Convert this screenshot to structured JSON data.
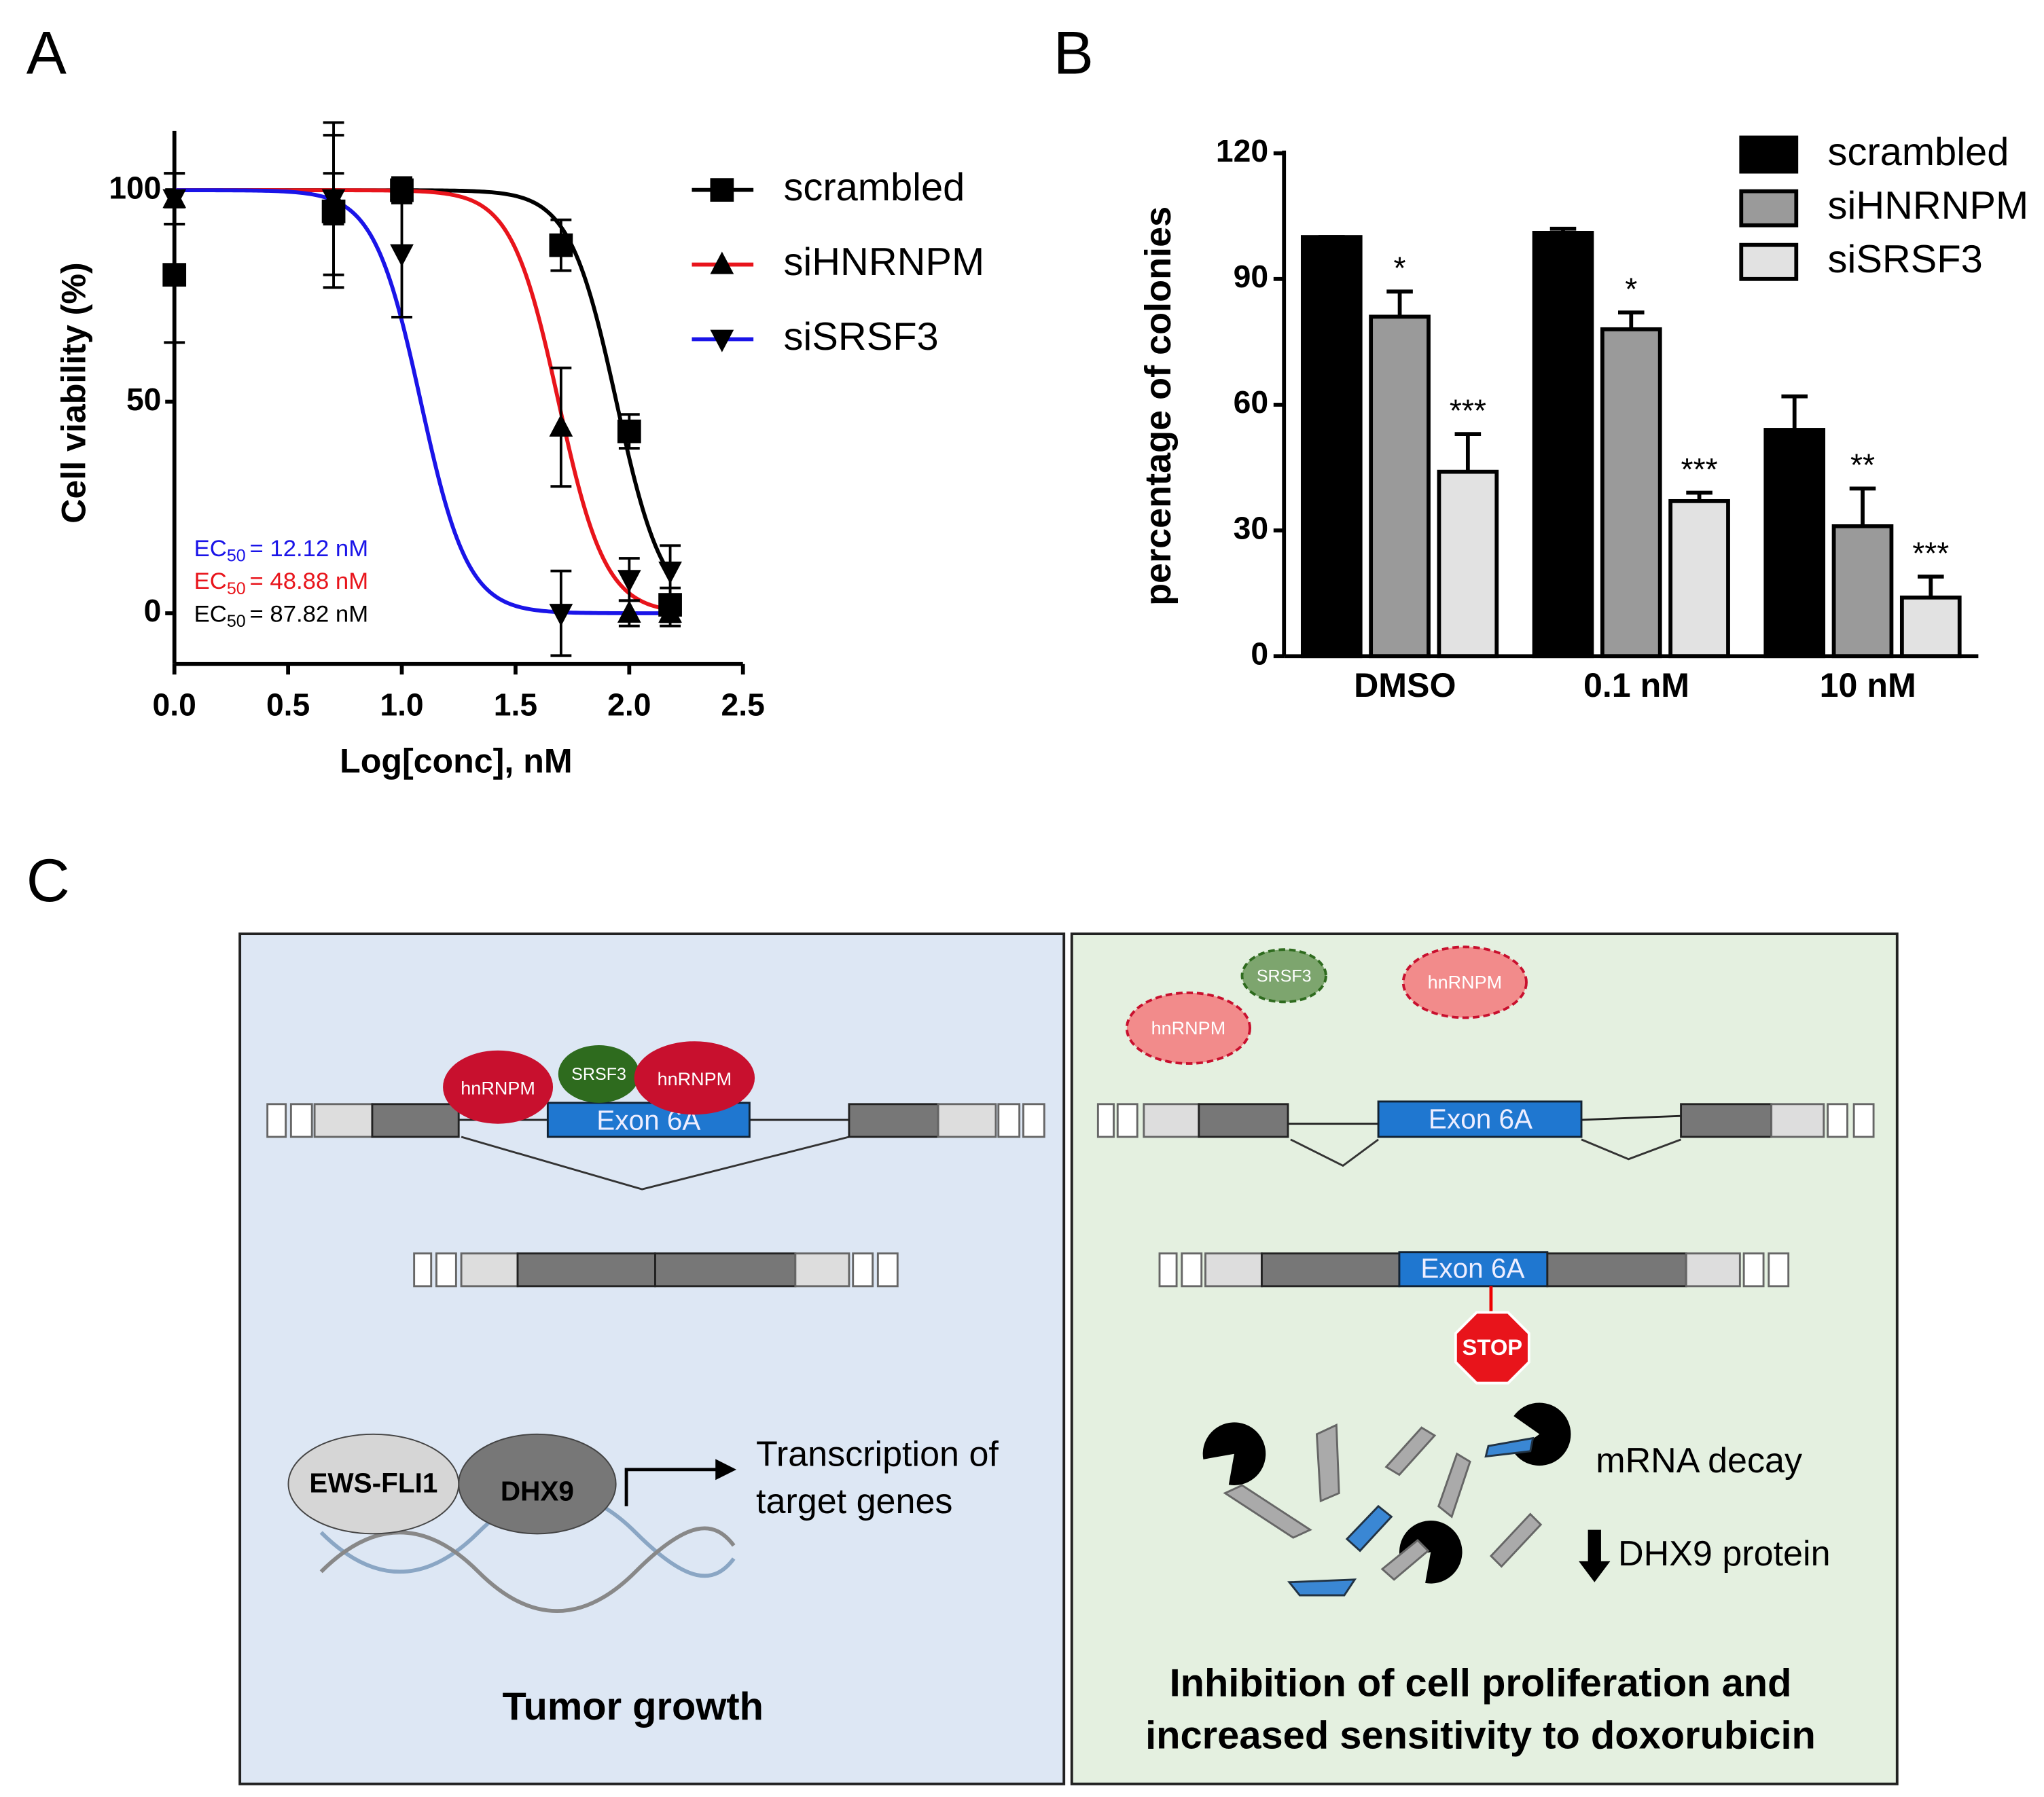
{
  "chart_data": [
    {
      "type": "line",
      "label": "A",
      "xlabel": "Log[conc], nM",
      "ylabel": "Cell viability (%)",
      "x": [
        0,
        0.7,
        1.0,
        1.7,
        2.0,
        2.18
      ],
      "xlim": [
        0,
        2.5
      ],
      "xticks": [
        {
          "value": 0,
          "label": "0.0"
        },
        {
          "value": 0.5,
          "label": "0.5"
        },
        {
          "value": 1,
          "label": "1.0"
        },
        {
          "value": 1.5,
          "label": "1.5"
        },
        {
          "value": 2,
          "label": "2.0"
        },
        {
          "value": 2.5,
          "label": "2.5"
        }
      ],
      "ylim": [
        -12,
        114
      ],
      "yticks": [
        0,
        50,
        100
      ],
      "ec50_text": "EC",
      "ec50_sub": "50",
      "series": [
        {
          "name": "scrambled",
          "color": "#000000",
          "marker": "square",
          "values": [
            80,
            95,
            100,
            87,
            43,
            2
          ],
          "errors": [
            16,
            18,
            3,
            6,
            4,
            4
          ],
          "ec50": 87.82,
          "ec50_label": "= 87.82 nM"
        },
        {
          "name": "siHNRNPM",
          "color": "#e8141b",
          "marker": "triangle-up",
          "values": [
            98,
            98,
            100,
            44,
            0,
            0
          ],
          "errors": [
            6,
            6,
            3,
            14,
            3,
            3
          ],
          "ec50": 48.88,
          "ec50_label": "= 48.88 nM"
        },
        {
          "name": "siSRSF3",
          "color": "#1a14e8",
          "marker": "triangle-down",
          "values": [
            98,
            98,
            85,
            0,
            8,
            10
          ],
          "errors": [
            6,
            18,
            15,
            10,
            5,
            6
          ],
          "ec50": 12.12,
          "ec50_label": "= 12.12 nM"
        }
      ]
    },
    {
      "type": "bar",
      "label": "B",
      "ylabel": "percentage of colonies",
      "categories": [
        "DMSO",
        "0.1 nM",
        "10 nM"
      ],
      "ylim": [
        0,
        120
      ],
      "yticks": [
        0,
        30,
        60,
        90,
        120
      ],
      "series": [
        {
          "name": "scrambled",
          "color": "#000000",
          "values": [
            100,
            101,
            54
          ],
          "errors": [
            0,
            1,
            8
          ]
        },
        {
          "name": "siHNRNPM",
          "color": "#9a9a9a",
          "values": [
            81,
            78,
            31
          ],
          "errors": [
            6,
            4,
            9
          ],
          "significance": [
            "*",
            "*",
            "**"
          ]
        },
        {
          "name": "siSRSF3",
          "color": "#e2e2e2",
          "values": [
            44,
            37,
            14
          ],
          "errors": [
            9,
            2,
            5
          ],
          "significance": [
            "***",
            "***",
            "***"
          ]
        }
      ]
    }
  ],
  "diagram": {
    "label": "C",
    "left": {
      "protein_1": "hnRNPM",
      "protein_2": "SRSF3",
      "protein_3": "hnRNPM",
      "exon": "Exon 6A",
      "complex_1": "EWS-FLI1",
      "complex_2": "DHX9",
      "transcription": [
        "Transcription of",
        "target genes"
      ],
      "outcome": "Tumor growth"
    },
    "right": {
      "protein_1": "SRSF3",
      "protein_2": "hnRNPM",
      "protein_3": "hnRNPM",
      "exon_1": "Exon 6A",
      "exon_2": "Exon 6A",
      "stop": "STOP",
      "decay": "mRNA decay",
      "protein_drop": "DHX9 protein",
      "outcome": [
        "Inhibition of cell proliferation and",
        "increased sensitivity to doxorubicin"
      ]
    }
  }
}
